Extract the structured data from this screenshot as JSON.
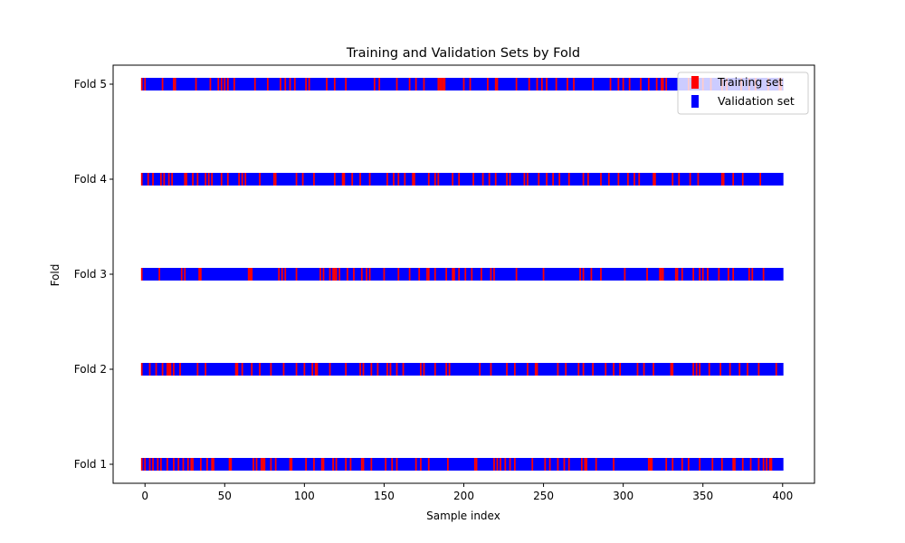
{
  "chart_data": {
    "type": "bar",
    "orientation": "horizontal",
    "title": "Training and Validation Sets by Fold",
    "xlabel": "Sample index",
    "ylabel": "Fold",
    "xlim": [
      -20,
      420
    ],
    "xticks": [
      0,
      50,
      100,
      150,
      200,
      250,
      300,
      350,
      400
    ],
    "categories": [
      "Fold 1",
      "Fold 2",
      "Fold 3",
      "Fold 4",
      "Fold 5"
    ],
    "sample_range": [
      0,
      400
    ],
    "grid": false,
    "legend_position": "upper-right",
    "series": [
      {
        "name": "Training set",
        "color": "#ff0000",
        "description_indices_by_fold": {
          "Fold 1": [
            -2,
            0,
            3,
            5,
            8,
            10,
            14,
            18,
            21,
            24,
            27,
            29,
            30,
            35,
            39,
            42,
            43,
            53,
            54,
            68,
            70,
            73,
            74,
            75,
            79,
            82,
            91,
            92,
            101,
            106,
            111,
            112,
            118,
            120,
            126,
            129,
            136,
            137,
            142,
            151,
            155,
            158,
            170,
            173,
            178,
            190,
            207,
            208,
            219,
            221,
            223,
            226,
            229,
            232,
            243,
            251,
            254,
            259,
            263,
            266,
            274,
            276,
            277,
            283,
            294,
            316,
            317,
            318,
            327,
            331,
            337,
            341,
            348,
            356,
            362,
            369,
            370,
            375,
            380,
            385,
            388,
            390,
            392,
            393
          ],
          "Fold 2": [
            -2,
            3,
            7,
            11,
            14,
            15,
            16,
            18,
            22,
            33,
            38,
            57,
            58,
            61,
            67,
            72,
            79,
            87,
            95,
            100,
            105,
            107,
            108,
            116,
            126,
            135,
            137,
            142,
            146,
            152,
            154,
            158,
            162,
            173,
            175,
            182,
            189,
            191,
            210,
            217,
            227,
            232,
            240,
            245,
            246,
            259,
            264,
            272,
            275,
            281,
            289,
            294,
            298,
            309,
            313,
            319,
            330,
            331,
            344,
            346,
            348,
            354,
            361,
            367,
            373,
            378,
            385,
            396
          ],
          "Fold 3": [
            -2,
            9,
            23,
            25,
            34,
            35,
            65,
            66,
            67,
            84,
            86,
            88,
            95,
            110,
            112,
            116,
            118,
            119,
            120,
            122,
            127,
            131,
            136,
            139,
            141,
            150,
            159,
            166,
            172,
            177,
            178,
            182,
            189,
            193,
            194,
            197,
            201,
            205,
            211,
            217,
            219,
            233,
            250,
            273,
            275,
            280,
            286,
            301,
            315,
            323,
            324,
            325,
            333,
            334,
            337,
            344,
            348,
            350,
            353,
            360,
            366,
            369,
            379,
            381,
            388
          ],
          "Fold 4": [
            -2,
            2,
            5,
            10,
            12,
            15,
            17,
            25,
            26,
            30,
            33,
            38,
            40,
            42,
            48,
            52,
            59,
            61,
            63,
            72,
            81,
            82,
            95,
            99,
            106,
            119,
            124,
            125,
            130,
            135,
            141,
            152,
            156,
            159,
            163,
            168,
            169,
            178,
            182,
            184,
            193,
            197,
            206,
            212,
            216,
            220,
            227,
            229,
            238,
            240,
            247,
            252,
            256,
            260,
            266,
            275,
            278,
            286,
            291,
            297,
            303,
            307,
            310,
            319,
            320,
            331,
            335,
            342,
            347,
            362,
            363,
            369,
            375,
            386
          ],
          "Fold 5": [
            -2,
            0,
            11,
            18,
            19,
            32,
            41,
            46,
            48,
            50,
            52,
            56,
            69,
            77,
            85,
            88,
            91,
            94,
            101,
            103,
            114,
            119,
            126,
            144,
            147,
            158,
            166,
            170,
            175,
            184,
            185,
            186,
            187,
            188,
            200,
            204,
            215,
            220,
            221,
            233,
            241,
            246,
            249,
            252,
            258,
            265,
            269,
            281,
            292,
            297,
            300,
            304,
            311,
            316,
            321,
            324,
            325,
            327,
            341,
            350,
            355,
            362,
            365,
            374,
            379,
            383,
            391,
            398,
            399
          ]
        }
      },
      {
        "name": "Validation set",
        "color": "#0000ff"
      }
    ]
  }
}
